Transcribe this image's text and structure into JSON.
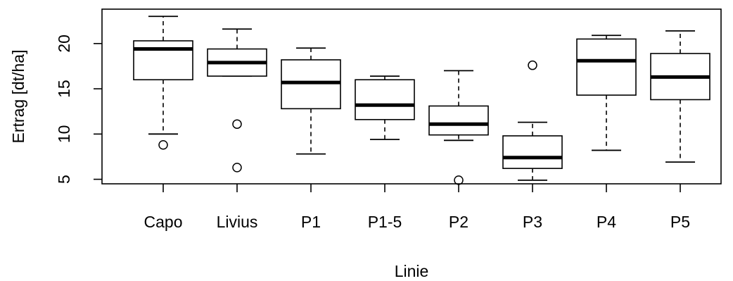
{
  "chart_data": {
    "type": "boxplot",
    "title": "",
    "xlabel": "Linie",
    "ylabel": "Ertrag [dt/ha]",
    "ylim": [
      4.5,
      23.8
    ],
    "y_ticks": [
      5,
      10,
      15,
      20
    ],
    "grid": false,
    "categories": [
      "Capo",
      "Livius",
      "P1",
      "P1-5",
      "P2",
      "P3",
      "P4",
      "P5"
    ],
    "boxes": [
      {
        "name": "Capo",
        "whisker_low": 10.0,
        "q1": 16.0,
        "median": 19.4,
        "q3": 20.3,
        "whisker_high": 23.0,
        "outliers": [
          8.8
        ]
      },
      {
        "name": "Livius",
        "whisker_low": 16.4,
        "q1": 16.4,
        "median": 17.9,
        "q3": 19.4,
        "whisker_high": 21.6,
        "outliers": [
          11.1,
          6.3
        ]
      },
      {
        "name": "P1",
        "whisker_low": 7.8,
        "q1": 12.8,
        "median": 15.7,
        "q3": 18.2,
        "whisker_high": 19.5,
        "outliers": []
      },
      {
        "name": "P1-5",
        "whisker_low": 9.4,
        "q1": 11.6,
        "median": 13.2,
        "q3": 16.0,
        "whisker_high": 16.4,
        "outliers": []
      },
      {
        "name": "P2",
        "whisker_low": 9.3,
        "q1": 9.9,
        "median": 11.1,
        "q3": 13.1,
        "whisker_high": 17.0,
        "outliers": [
          4.9
        ]
      },
      {
        "name": "P3",
        "whisker_low": 4.9,
        "q1": 6.2,
        "median": 7.4,
        "q3": 9.8,
        "whisker_high": 11.3,
        "outliers": [
          17.6
        ]
      },
      {
        "name": "P4",
        "whisker_low": 8.2,
        "q1": 14.3,
        "median": 18.1,
        "q3": 20.5,
        "whisker_high": 20.9,
        "outliers": []
      },
      {
        "name": "P5",
        "whisker_low": 6.9,
        "q1": 13.8,
        "median": 16.3,
        "q3": 18.9,
        "whisker_high": 21.4,
        "outliers": []
      }
    ]
  }
}
